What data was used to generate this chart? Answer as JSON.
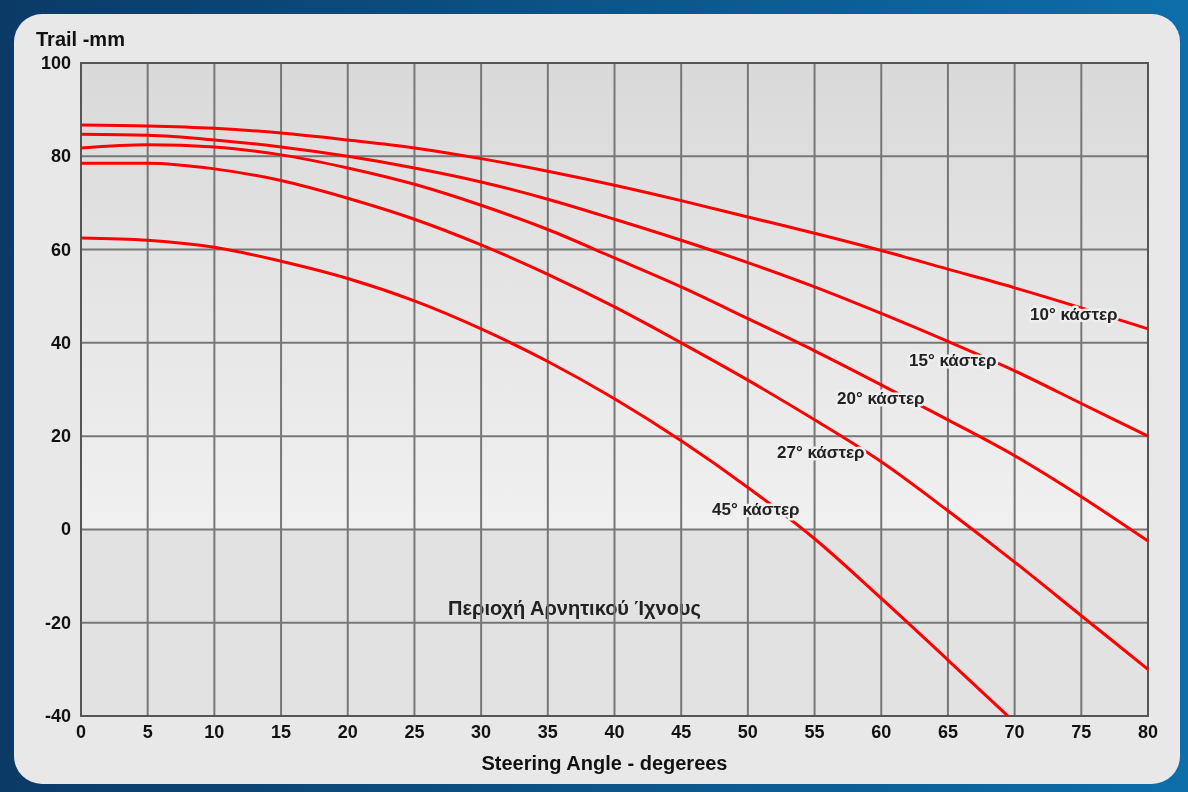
{
  "chart_data": {
    "type": "line",
    "xlabel": "Steering Angle - degerees",
    "ylabel": "Trail -mm",
    "x": [
      0,
      5,
      10,
      15,
      20,
      25,
      30,
      35,
      40,
      45,
      50,
      55,
      60,
      65,
      70,
      75,
      80
    ],
    "series": [
      {
        "name": "10° κάστερ",
        "color": "#ff0000",
        "values": [
          86.7,
          86.5,
          86,
          85,
          83.5,
          81.8,
          79.5,
          76.8,
          73.8,
          70.5,
          67,
          63.5,
          59.8,
          55.8,
          51.8,
          47.5,
          43
        ]
      },
      {
        "name": "15° κάστερ",
        "color": "#ff0000",
        "values": [
          84.7,
          84.5,
          83.5,
          82,
          80,
          77.5,
          74.5,
          70.8,
          66.5,
          62,
          57.2,
          52,
          46.3,
          40.3,
          34,
          27,
          20
        ]
      },
      {
        "name": "20° κάστερ",
        "color": "#ff0000",
        "values": [
          81.8,
          82.5,
          82,
          80.3,
          77.5,
          74,
          69.5,
          64.3,
          58.2,
          52,
          45.2,
          38.3,
          31,
          23.5,
          15.8,
          7,
          -2.5
        ]
      },
      {
        "name": "27° κάστερ",
        "color": "#ff0000",
        "values": [
          78.5,
          78.5,
          77.3,
          74.8,
          71,
          66.5,
          61,
          54.7,
          47.7,
          40,
          32,
          23.5,
          14.5,
          4,
          -7,
          -18.5,
          -30
        ]
      },
      {
        "name": "45° κάστερ",
        "color": "#ff0000",
        "x": [
          0,
          5,
          10,
          15,
          20,
          25,
          30,
          35,
          40,
          45,
          50,
          55,
          60,
          65,
          69.5
        ],
        "values": [
          62.5,
          62,
          60.5,
          57.5,
          53.8,
          49,
          43,
          36,
          28,
          19,
          9,
          -2,
          -14.8,
          -28,
          -40
        ]
      }
    ],
    "xlim": [
      0,
      80
    ],
    "xticks": [
      0,
      5,
      10,
      15,
      20,
      25,
      30,
      35,
      40,
      45,
      50,
      55,
      60,
      65,
      70,
      75,
      80
    ],
    "ylim": [
      -40,
      100
    ],
    "yticks": [
      -40,
      -20,
      0,
      20,
      40,
      60,
      80,
      100
    ],
    "grid": true,
    "marker": "none",
    "line_style": "solid",
    "bands": [
      {
        "axis": "y",
        "from": -40,
        "to": 0,
        "label": "Περιοχή Αρνητικού Ίχνους",
        "color": "#e2e2e2"
      }
    ]
  }
}
